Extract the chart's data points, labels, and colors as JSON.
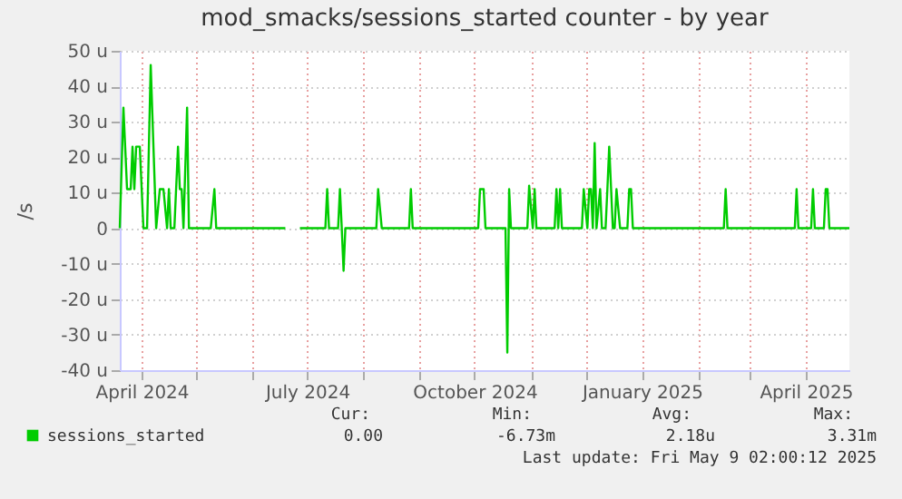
{
  "chart_data": {
    "type": "line",
    "title": "mod_smacks/sessions_started counter - by year",
    "ylabel": "/s",
    "x": [
      "2024-03-20",
      "2024-03-22",
      "2024-03-24",
      "2024-03-26",
      "2024-03-27",
      "2024-03-28",
      "2024-03-29",
      "2024-03-31",
      "2024-04-02",
      "2024-04-04",
      "2024-04-06",
      "2024-04-09",
      "2024-04-11",
      "2024-04-13",
      "2024-04-15",
      "2024-04-16",
      "2024-04-17",
      "2024-04-19",
      "2024-04-21",
      "2024-04-22",
      "2024-04-23",
      "2024-04-24",
      "2024-04-26",
      "2024-04-27",
      "2024-05-09",
      "2024-05-11",
      "2024-05-12",
      "2024-06-19",
      "2024-06-23",
      "2024-06-27",
      "2024-07-11",
      "2024-07-12",
      "2024-07-13",
      "2024-07-18",
      "2024-07-19",
      "2024-07-20",
      "2024-07-21",
      "2024-07-22",
      "2024-08-08",
      "2024-08-09",
      "2024-08-11",
      "2024-08-26",
      "2024-08-27",
      "2024-08-28",
      "2024-10-03",
      "2024-10-04",
      "2024-10-06",
      "2024-10-07",
      "2024-10-18",
      "2024-10-19",
      "2024-10-20",
      "2024-10-21",
      "2024-10-30",
      "2024-10-31",
      "2024-11-02",
      "2024-11-03",
      "2024-11-04",
      "2024-11-14",
      "2024-11-15",
      "2024-11-16",
      "2024-11-17",
      "2024-11-18",
      "2024-11-29",
      "2024-11-30",
      "2024-12-02",
      "2024-12-03",
      "2024-12-04",
      "2024-12-05",
      "2024-12-06",
      "2024-12-07",
      "2024-12-09",
      "2024-12-10",
      "2024-12-12",
      "2024-12-13",
      "2024-12-14",
      "2024-12-16",
      "2024-12-17",
      "2024-12-18",
      "2024-12-20",
      "2024-12-24",
      "2024-12-25",
      "2024-12-26",
      "2024-12-27",
      "2025-02-15",
      "2025-02-16",
      "2025-02-17",
      "2025-03-26",
      "2025-03-27",
      "2025-03-28",
      "2025-04-04",
      "2025-04-05",
      "2025-04-06",
      "2025-04-11",
      "2025-04-12",
      "2025-04-13",
      "2025-04-14",
      "2025-04-25"
    ],
    "series": [
      {
        "name": "sessions_started",
        "color": "#00cc00",
        "values": [
          0,
          34,
          11,
          11,
          23,
          11,
          23,
          23,
          0,
          0,
          46,
          0,
          11,
          11,
          0,
          11,
          0,
          0,
          23,
          11,
          11,
          0,
          34,
          0,
          0,
          11,
          0,
          0,
          null,
          0,
          0,
          11,
          0,
          0,
          11,
          0,
          -12,
          0,
          0,
          11,
          0,
          0,
          11,
          0,
          0,
          11,
          11,
          0,
          0,
          -35,
          11,
          0,
          0,
          12,
          0,
          11,
          0,
          0,
          11,
          0,
          11,
          0,
          0,
          11,
          0,
          11,
          11,
          0,
          24,
          0,
          11,
          0,
          0,
          11,
          23,
          0,
          0,
          11,
          0,
          0,
          11,
          11,
          0,
          0,
          11,
          0,
          0,
          11,
          0,
          0,
          11,
          0,
          0,
          11,
          11,
          0,
          0
        ]
      }
    ],
    "xlim": [
      "2024-03-20",
      "2025-04-25"
    ],
    "xticks": [
      {
        "value": "2024-04-01",
        "label": "April 2024"
      },
      {
        "value": "2024-05-01",
        "label": null
      },
      {
        "value": "2024-06-01",
        "label": null
      },
      {
        "value": "2024-07-01",
        "label": "July 2024"
      },
      {
        "value": "2024-08-01",
        "label": null
      },
      {
        "value": "2024-09-01",
        "label": null
      },
      {
        "value": "2024-10-01",
        "label": "October 2024"
      },
      {
        "value": "2024-11-01",
        "label": null
      },
      {
        "value": "2024-12-01",
        "label": null
      },
      {
        "value": "2025-01-01",
        "label": "January 2025"
      },
      {
        "value": "2025-02-01",
        "label": null
      },
      {
        "value": "2025-03-01",
        "label": null
      },
      {
        "value": "2025-04-01",
        "label": "April 2025"
      }
    ],
    "ylim": [
      -40,
      50
    ],
    "yticks": [
      {
        "value": -40,
        "label": "-40 u"
      },
      {
        "value": -30,
        "label": "-30 u"
      },
      {
        "value": -20,
        "label": "-20 u"
      },
      {
        "value": -10,
        "label": "-10 u"
      },
      0,
      {
        "value": 10,
        "label": "10 u"
      },
      {
        "value": 20,
        "label": "20 u"
      },
      {
        "value": 30,
        "label": "30 u"
      },
      {
        "value": 40,
        "label": "40 u"
      },
      {
        "value": 50,
        "label": "50 u"
      }
    ],
    "grid": true,
    "legend": "bottom",
    "marker": "none",
    "line_style": "solid",
    "annotations": [
      "Cur:",
      "Min:",
      "Avg:",
      "Max:",
      "0.00",
      "-6.73m",
      "2.18u",
      "3.31m",
      "Last update: Fri May  9 02:00:12 2025"
    ]
  }
}
